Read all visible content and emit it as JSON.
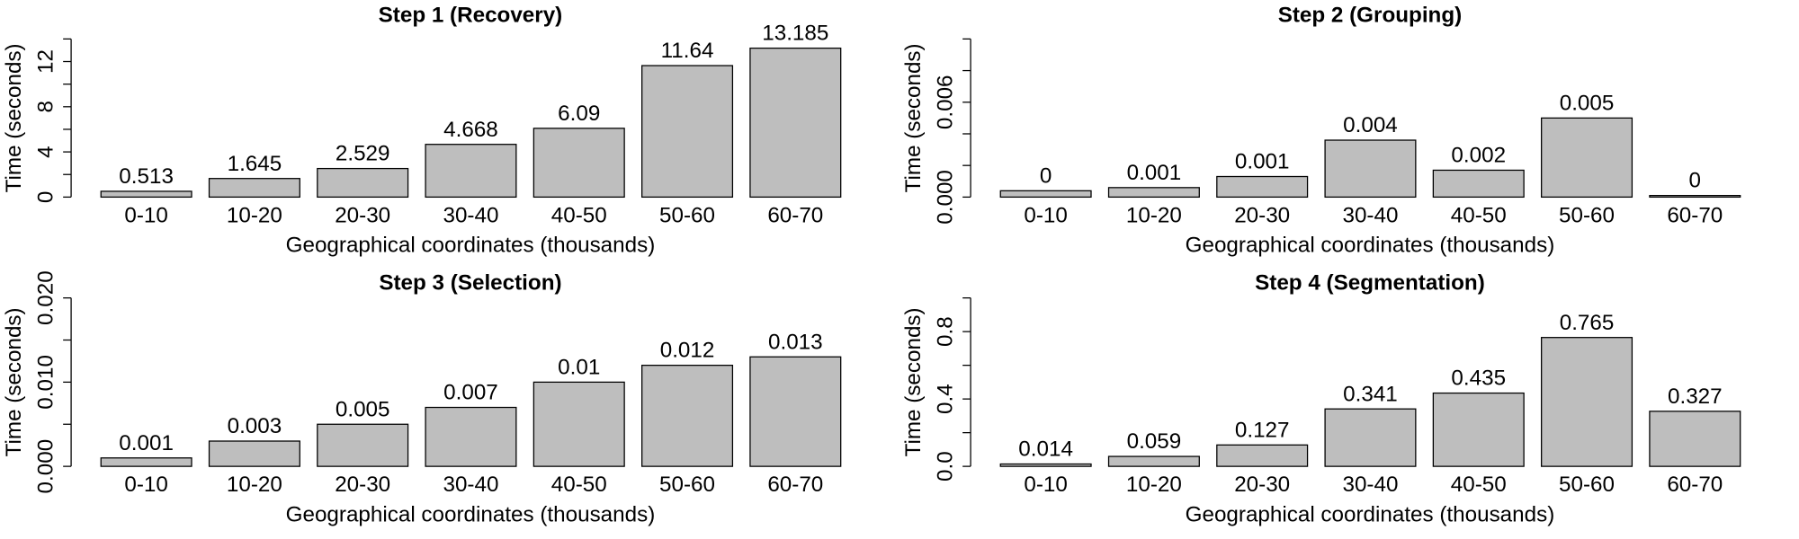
{
  "chart_data": [
    {
      "type": "bar",
      "title": "Step 1 (Recovery)",
      "xlabel": "Geographical coordinates (thousands)",
      "ylabel": "Time (seconds)",
      "categories": [
        "0-10",
        "10-20",
        "20-30",
        "30-40",
        "40-50",
        "50-60",
        "60-70"
      ],
      "values": [
        0.513,
        1.645,
        2.529,
        4.668,
        6.09,
        11.64,
        13.185
      ],
      "color": "#bebebe",
      "ylim": [
        0,
        14
      ],
      "yticks": [
        0,
        4,
        8,
        12
      ],
      "yminorticks": [
        2,
        6,
        10,
        14
      ]
    },
    {
      "type": "bar",
      "title": "Step 2 (Grouping)",
      "xlabel": "Geographical coordinates (thousands)",
      "ylabel": "Time (seconds)",
      "categories": [
        "0-10",
        "10-20",
        "20-30",
        "30-40",
        "40-50",
        "50-60",
        "60-70"
      ],
      "values": [
        0.0004,
        0.0006,
        0.0013,
        0.0036,
        0.0017,
        0.005,
        0.0001
      ],
      "value_labels": [
        "0",
        "0.001",
        "0.001",
        "0.004",
        "0.002",
        "0.005",
        "0"
      ],
      "color": "#bebebe",
      "ylim": [
        0,
        0.01
      ],
      "yticks": [
        {
          "value": 0,
          "label": "0.000"
        },
        0.006
      ],
      "yminorticks": [
        0.002,
        0.004,
        0.008,
        0.01
      ]
    },
    {
      "type": "bar",
      "title": "Step 3 (Selection)",
      "xlabel": "Geographical coordinates (thousands)",
      "ylabel": "Time (seconds)",
      "categories": [
        "0-10",
        "10-20",
        "20-30",
        "30-40",
        "40-50",
        "50-60",
        "60-70"
      ],
      "values": [
        0.001,
        0.003,
        0.005,
        0.007,
        0.01,
        0.012,
        0.013
      ],
      "color": "#bebebe",
      "ylim": [
        0,
        0.02
      ],
      "yticks": [
        {
          "value": 0,
          "label": "0.000"
        },
        {
          "value": 0.01,
          "label": "0.010"
        },
        {
          "value": 0.02,
          "label": "0.020"
        }
      ],
      "yminorticks": [
        0.005,
        0.015
      ]
    },
    {
      "type": "bar",
      "title": "Step 4 (Segmentation)",
      "xlabel": "Geographical coordinates (thousands)",
      "ylabel": "Time (seconds)",
      "categories": [
        "0-10",
        "10-20",
        "20-30",
        "30-40",
        "40-50",
        "50-60",
        "60-70"
      ],
      "values": [
        0.014,
        0.059,
        0.127,
        0.341,
        0.435,
        0.765,
        0.327
      ],
      "color": "#bebebe",
      "ylim": [
        0,
        1
      ],
      "yticks": [
        {
          "value": 0,
          "label": "0.0"
        },
        0.4,
        0.8
      ],
      "yminorticks": [
        0.2,
        0.6,
        1
      ]
    }
  ]
}
